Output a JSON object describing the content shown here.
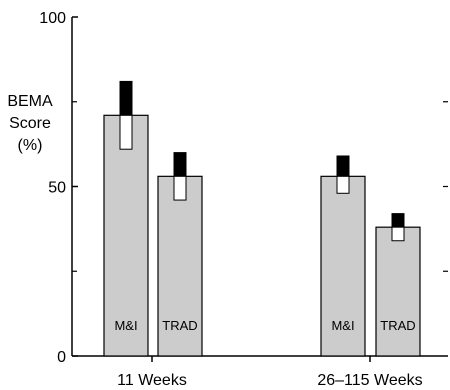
{
  "chart_data": {
    "type": "bar",
    "ylabel_lines": [
      "BEMA",
      "Score",
      "(%)"
    ],
    "ylim": [
      0,
      100
    ],
    "yticks": [
      0,
      50,
      100
    ],
    "groups": [
      {
        "label": "11 Weeks",
        "bars": [
          {
            "name": "M&I",
            "value": 71,
            "error_minus": 10,
            "error_plus": 10
          },
          {
            "name": "TRAD",
            "value": 53,
            "error_minus": 7,
            "error_plus": 7
          }
        ]
      },
      {
        "label": "26–115 Weeks",
        "bars": [
          {
            "name": "M&I",
            "value": 53,
            "error_minus": 5,
            "error_plus": 6
          },
          {
            "name": "TRAD",
            "value": 38,
            "error_minus": 4,
            "error_plus": 4
          }
        ]
      }
    ],
    "colors": {
      "bar_fill": "#cccccc",
      "bar_stroke": "#000000",
      "upper_error": "#000000",
      "lower_error": "#ffffff"
    }
  }
}
